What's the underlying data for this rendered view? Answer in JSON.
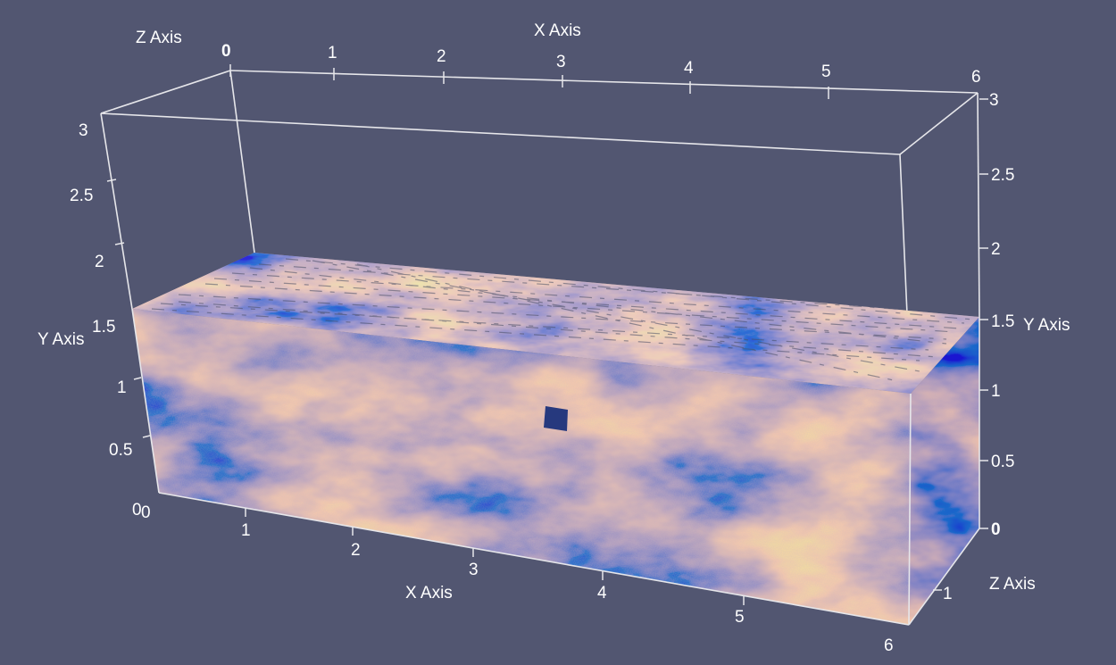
{
  "scene": {
    "background": "#525671",
    "axis_color": "#e6e6ea",
    "colormap": "cool-to-warm",
    "marker_color": "#26397e"
  },
  "axes": {
    "x_top": {
      "title": "X Axis",
      "ticks": [
        "0",
        "1",
        "2",
        "3",
        "4",
        "5",
        "6"
      ]
    },
    "x_bottom": {
      "title": "X Axis",
      "ticks": [
        "0",
        "1",
        "2",
        "3",
        "4",
        "5",
        "6"
      ]
    },
    "y_left": {
      "title": "Y Axis",
      "ticks": [
        "0",
        "0.5",
        "1",
        "1.5",
        "2",
        "2.5",
        "3"
      ]
    },
    "y_right": {
      "title": "Y Axis",
      "ticks": [
        "0",
        "0.5",
        "1",
        "1.5",
        "2",
        "2.5",
        "3"
      ]
    },
    "z_top": {
      "title": "Z Axis"
    },
    "z_bottom_right": {
      "title": "Z Axis",
      "ticks": [
        "1"
      ]
    },
    "corner_zero": "0"
  }
}
